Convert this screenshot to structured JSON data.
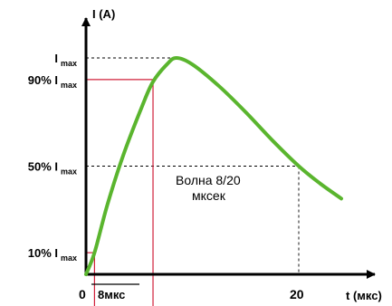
{
  "chart_data": {
    "type": "line",
    "ylabel": "I (A)",
    "xlabel": "t (мкс)",
    "x_ticks": [
      "0",
      "20"
    ],
    "y_levels": [
      {
        "prefix": "",
        "main": "I",
        "sub": "max",
        "fraction": 1.0
      },
      {
        "prefix": "90% ",
        "main": "I",
        "sub": "max",
        "fraction": 0.9
      },
      {
        "prefix": "50% ",
        "main": "I",
        "sub": "max",
        "fraction": 0.5
      },
      {
        "prefix": "10% ",
        "main": "I",
        "sub": "max",
        "fraction": 0.1
      }
    ],
    "interval_label": "8мкс",
    "annotation": [
      "Волна 8/20",
      "мксек"
    ],
    "series": [
      {
        "color": "#5ab52e",
        "x_us": [
          0,
          0.8,
          2.0,
          3.5,
          5.3,
          6.3,
          7.6,
          8.5,
          10.0,
          12.5,
          15.0,
          17.5,
          20.0,
          22.0,
          24.0
        ],
        "y_frac": [
          0.0,
          0.1,
          0.32,
          0.55,
          0.78,
          0.89,
          0.97,
          1.0,
          0.97,
          0.87,
          0.75,
          0.62,
          0.5,
          0.42,
          0.35
        ]
      }
    ],
    "markers": {
      "t_10pct": 0.8,
      "t_90pct": 6.3,
      "t_peak": 8.5,
      "t_50pct_decay": 20.0
    },
    "colors": {
      "curve": "#5ab52e",
      "rise_lines": "#d0203a",
      "guides": "#000000",
      "axes": "#000000"
    }
  }
}
